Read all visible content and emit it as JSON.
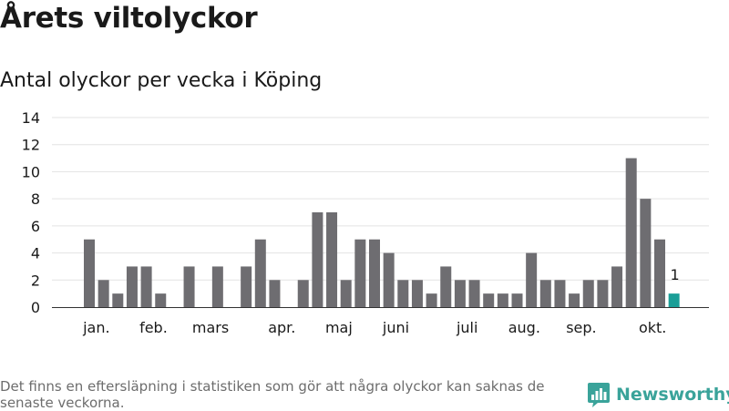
{
  "title": "Årets viltolyckor",
  "subtitle": "Antal olyckor per vecka i Köping",
  "footnote": "Det finns en eftersläpning i statistiken som gör att några olyckor kan saknas de senaste veckorna.",
  "brand": {
    "name": "Newsworthy",
    "icon": "newsworthy-logo-icon",
    "color": "#3aa39a"
  },
  "chart_data": {
    "type": "bar",
    "title": "Antal olyckor per vecka i Köping",
    "xlabel": "",
    "ylabel": "",
    "ylim": [
      0,
      14
    ],
    "yticks": [
      0,
      2,
      4,
      6,
      8,
      10,
      12,
      14
    ],
    "grid": true,
    "bar_color": "#6e6d71",
    "highlight_color": "#1a9e97",
    "weeks": [
      1,
      2,
      3,
      4,
      5,
      6,
      7,
      8,
      9,
      10,
      11,
      12,
      13,
      14,
      15,
      16,
      17,
      18,
      19,
      20,
      21,
      22,
      23,
      24,
      25,
      26,
      27,
      28,
      29,
      30,
      31,
      32,
      33,
      34,
      35,
      36,
      37,
      38,
      39,
      40,
      41,
      42
    ],
    "values": [
      5,
      2,
      1,
      3,
      3,
      1,
      0,
      3,
      0,
      3,
      0,
      3,
      5,
      2,
      0,
      2,
      7,
      7,
      2,
      5,
      5,
      4,
      2,
      2,
      1,
      3,
      2,
      2,
      1,
      1,
      1,
      4,
      2,
      2,
      1,
      2,
      2,
      3,
      11,
      8,
      5,
      1
    ],
    "highlight_index": 41,
    "data_labels": [
      {
        "index": 41,
        "text": "1"
      }
    ],
    "month_labels": [
      {
        "label": "jan.",
        "week": 1.5
      },
      {
        "label": "feb.",
        "week": 5.5
      },
      {
        "label": "mars",
        "week": 9.5
      },
      {
        "label": "apr.",
        "week": 14.5
      },
      {
        "label": "maj",
        "week": 18.5
      },
      {
        "label": "juni",
        "week": 22.5
      },
      {
        "label": "juli",
        "week": 27.5
      },
      {
        "label": "aug.",
        "week": 31.5
      },
      {
        "label": "sep.",
        "week": 35.5
      },
      {
        "label": "okt.",
        "week": 40.5
      }
    ]
  }
}
